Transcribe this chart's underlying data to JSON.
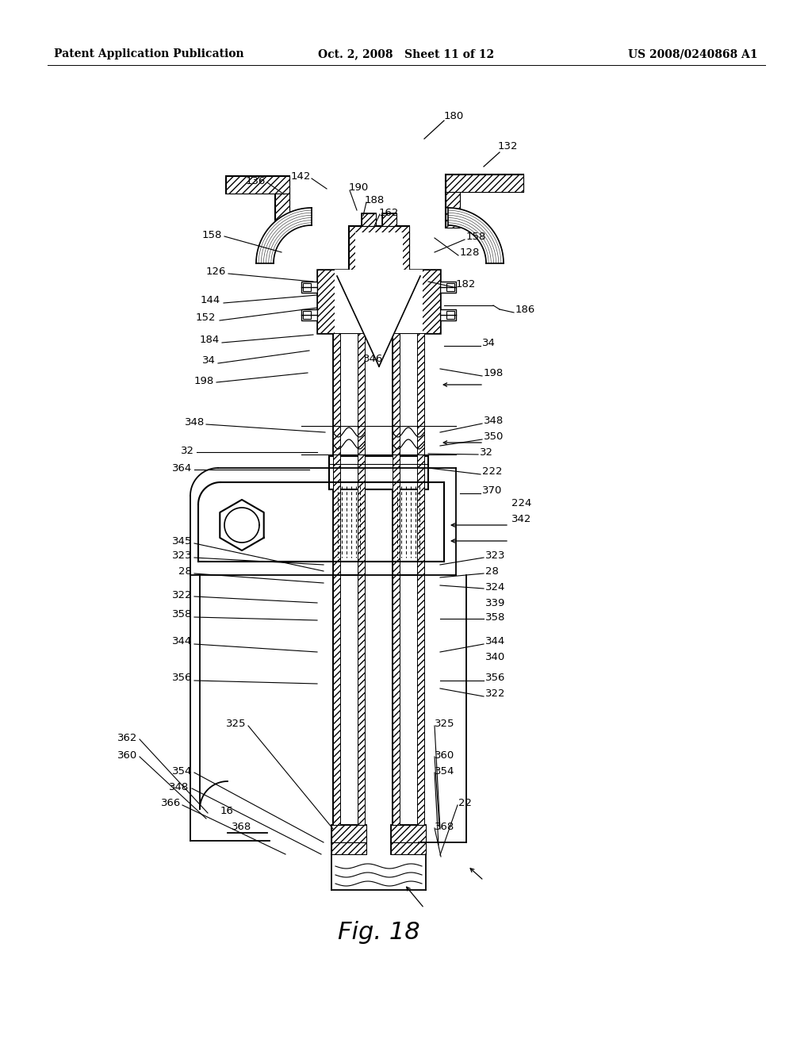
{
  "header_left": "Patent Application Publication",
  "header_mid": "Oct. 2, 2008   Sheet 11 of 12",
  "header_right": "US 2008/0240868 A1",
  "fig_caption": "Fig. 18",
  "bg_color": "#ffffff"
}
